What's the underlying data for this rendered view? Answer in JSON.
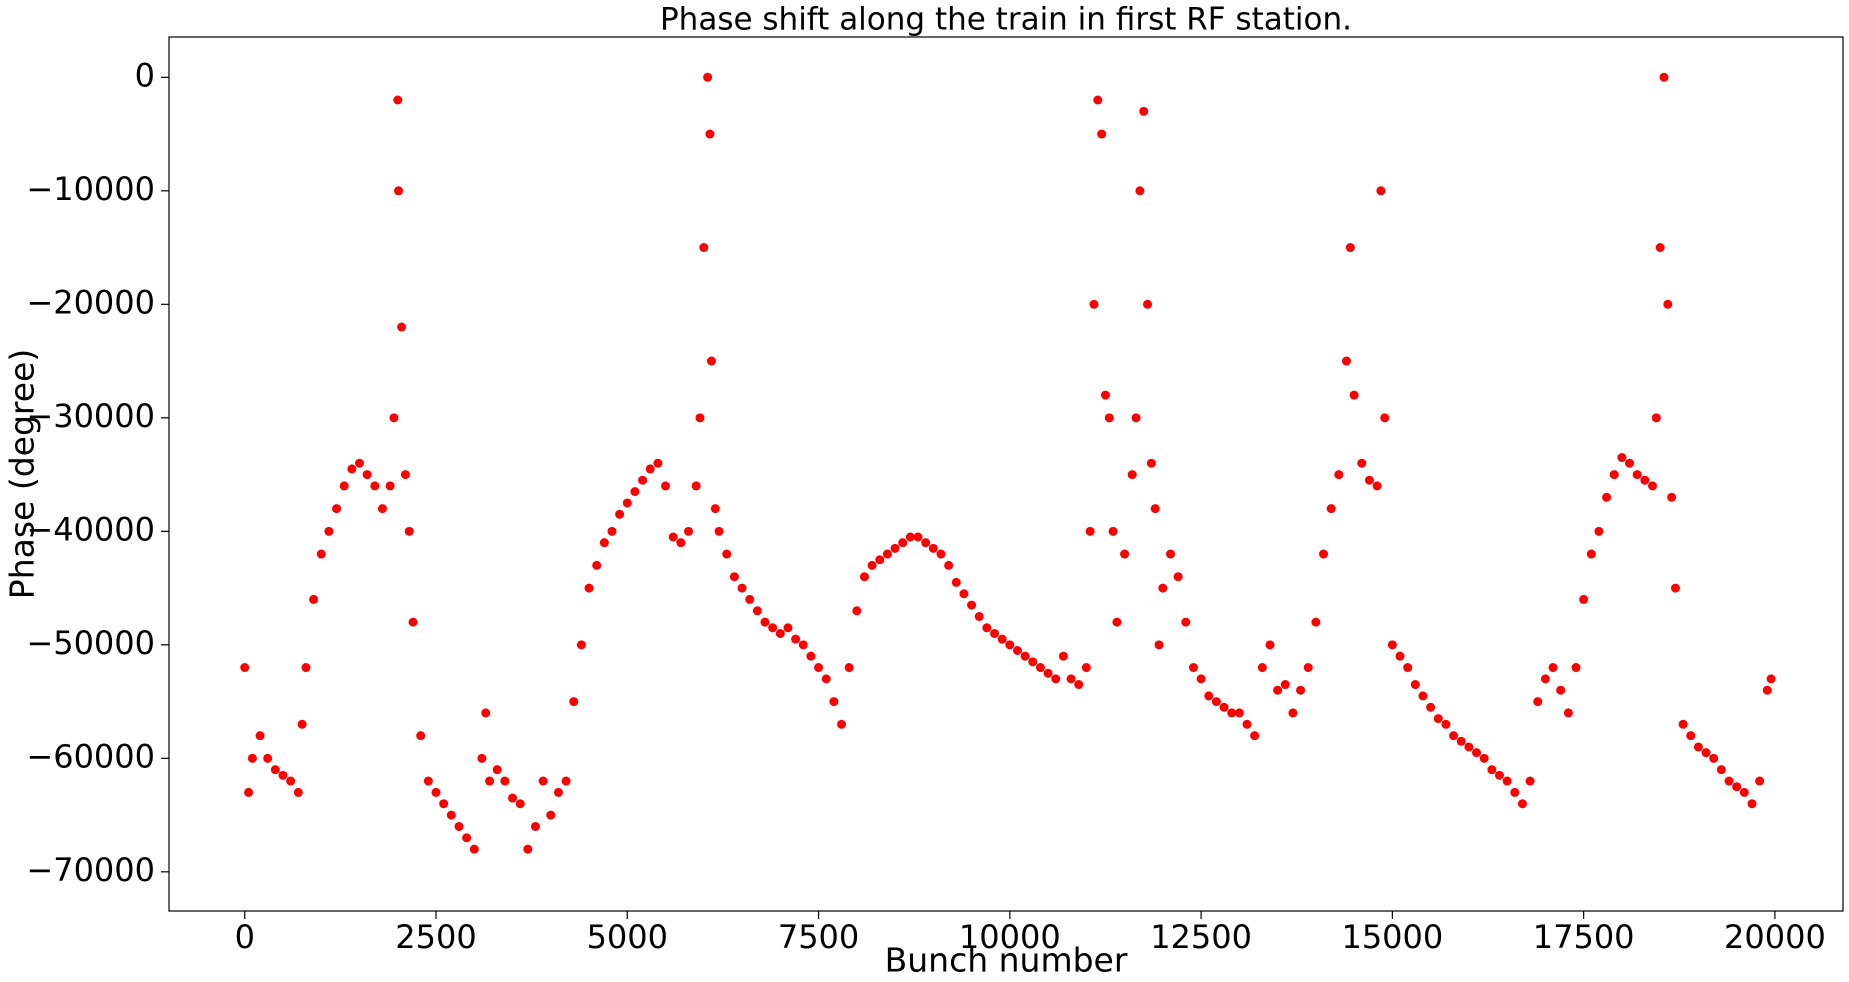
{
  "chart_data": {
    "type": "scatter",
    "title": "Phase shift along the train in first RF station.",
    "x_label": "Bunch number",
    "y_label": "Phase (degree)",
    "color": "#ff0000",
    "xlim": [
      -990,
      20890
    ],
    "ylim": [
      -73450,
      3550
    ],
    "xticks": [
      0,
      2500,
      5000,
      7500,
      10000,
      12500,
      15000,
      17500,
      20000
    ],
    "yticks": [
      0,
      {
        "value": -10000,
        "label": "−10000"
      },
      {
        "value": -20000,
        "label": "−20000"
      },
      {
        "value": -30000,
        "label": "−30000"
      },
      {
        "value": -40000,
        "label": "−40000"
      },
      {
        "value": -50000,
        "label": "−50000"
      },
      {
        "value": -60000,
        "label": "−60000"
      },
      {
        "value": -70000,
        "label": "−70000"
      }
    ],
    "x": [
      0,
      50,
      100,
      200,
      300,
      400,
      500,
      600,
      700,
      750,
      800,
      900,
      1000,
      1100,
      1200,
      1300,
      1400,
      1500,
      1600,
      1700,
      1800,
      1900,
      1950,
      2000,
      2010,
      2050,
      2100,
      2150,
      2200,
      2300,
      2400,
      2500,
      2600,
      2700,
      2800,
      2900,
      3000,
      3100,
      3150,
      3200,
      3300,
      3400,
      3500,
      3600,
      3700,
      3800,
      3900,
      4000,
      4100,
      4200,
      4300,
      4400,
      4500,
      4600,
      4700,
      4800,
      4900,
      5000,
      5100,
      5200,
      5300,
      5400,
      5500,
      5600,
      5700,
      5800,
      5900,
      5950,
      6000,
      6050,
      6080,
      6100,
      6150,
      6200,
      6300,
      6400,
      6500,
      6600,
      6700,
      6800,
      6900,
      7000,
      7100,
      7200,
      7300,
      7400,
      7500,
      7600,
      7700,
      7800,
      7900,
      8000,
      8100,
      8200,
      8300,
      8400,
      8500,
      8600,
      8700,
      8800,
      8900,
      9000,
      9100,
      9200,
      9300,
      9400,
      9500,
      9600,
      9700,
      9800,
      9900,
      10000,
      10100,
      10200,
      10300,
      10400,
      10500,
      10600,
      10700,
      10800,
      10900,
      11000,
      11050,
      11100,
      11150,
      11200,
      11250,
      11300,
      11350,
      11400,
      11500,
      11600,
      11650,
      11700,
      11750,
      11800,
      11850,
      11900,
      11950,
      12000,
      12100,
      12200,
      12300,
      12400,
      12500,
      12600,
      12700,
      12800,
      12900,
      13000,
      13100,
      13200,
      13300,
      13400,
      13500,
      13600,
      13700,
      13800,
      13900,
      14000,
      14100,
      14200,
      14300,
      14400,
      14450,
      14500,
      14600,
      14700,
      14800,
      14850,
      14900,
      15000,
      15100,
      15200,
      15300,
      15400,
      15500,
      15600,
      15700,
      15800,
      15900,
      16000,
      16100,
      16200,
      16300,
      16400,
      16500,
      16600,
      16700,
      16800,
      16900,
      17000,
      17100,
      17200,
      17300,
      17400,
      17500,
      17600,
      17700,
      17800,
      17900,
      18000,
      18100,
      18200,
      18300,
      18400,
      18450,
      18500,
      18550,
      18600,
      18650,
      18700,
      18800,
      18900,
      19000,
      19100,
      19200,
      19300,
      19400,
      19500,
      19600,
      19700,
      19800,
      19900,
      19950
    ],
    "values": [
      -52000,
      -63000,
      -60000,
      -58000,
      -60000,
      -61000,
      -61500,
      -62000,
      -63000,
      -57000,
      -52000,
      -46000,
      -42000,
      -40000,
      -38000,
      -36000,
      -34500,
      -34000,
      -35000,
      -36000,
      -38000,
      -36000,
      -30000,
      -2000,
      -10000,
      -22000,
      -35000,
      -40000,
      -48000,
      -58000,
      -62000,
      -63000,
      -64000,
      -65000,
      -66000,
      -67000,
      -68000,
      -60000,
      -56000,
      -62000,
      -61000,
      -62000,
      -63500,
      -64000,
      -68000,
      -66000,
      -62000,
      -65000,
      -63000,
      -62000,
      -55000,
      -50000,
      -45000,
      -43000,
      -41000,
      -40000,
      -38500,
      -37500,
      -36500,
      -35500,
      -34500,
      -34000,
      -36000,
      -40500,
      -41000,
      -40000,
      -36000,
      -30000,
      -15000,
      0,
      -5000,
      -25000,
      -38000,
      -40000,
      -42000,
      -44000,
      -45000,
      -46000,
      -47000,
      -48000,
      -48500,
      -49000,
      -48500,
      -49500,
      -50000,
      -51000,
      -52000,
      -53000,
      -55000,
      -57000,
      -52000,
      -47000,
      -44000,
      -43000,
      -42500,
      -42000,
      -41500,
      -41000,
      -40500,
      -40500,
      -41000,
      -41500,
      -42000,
      -43000,
      -44500,
      -45500,
      -46500,
      -47500,
      -48500,
      -49000,
      -49500,
      -50000,
      -50500,
      -51000,
      -51500,
      -52000,
      -52500,
      -53000,
      -51000,
      -53000,
      -53500,
      -52000,
      -40000,
      -20000,
      -2000,
      -5000,
      -28000,
      -30000,
      -40000,
      -48000,
      -42000,
      -35000,
      -30000,
      -10000,
      -3000,
      -20000,
      -34000,
      -38000,
      -50000,
      -45000,
      -42000,
      -44000,
      -48000,
      -52000,
      -53000,
      -54500,
      -55000,
      -55500,
      -56000,
      -56000,
      -57000,
      -58000,
      -52000,
      -50000,
      -54000,
      -53500,
      -56000,
      -54000,
      -52000,
      -48000,
      -42000,
      -38000,
      -35000,
      -25000,
      -15000,
      -28000,
      -34000,
      -35500,
      -36000,
      -10000,
      -30000,
      -50000,
      -51000,
      -52000,
      -53500,
      -54500,
      -55500,
      -56500,
      -57000,
      -58000,
      -58500,
      -59000,
      -59500,
      -60000,
      -61000,
      -61500,
      -62000,
      -63000,
      -64000,
      -62000,
      -55000,
      -53000,
      -52000,
      -54000,
      -56000,
      -52000,
      -46000,
      -42000,
      -40000,
      -37000,
      -35000,
      -33500,
      -34000,
      -35000,
      -35500,
      -36000,
      -30000,
      -15000,
      0,
      -20000,
      -37000,
      -45000,
      -57000,
      -58000,
      -59000,
      -59500,
      -60000,
      -61000,
      -62000,
      -62500,
      -63000,
      -64000,
      -62000,
      -54000,
      -53000
    ]
  }
}
